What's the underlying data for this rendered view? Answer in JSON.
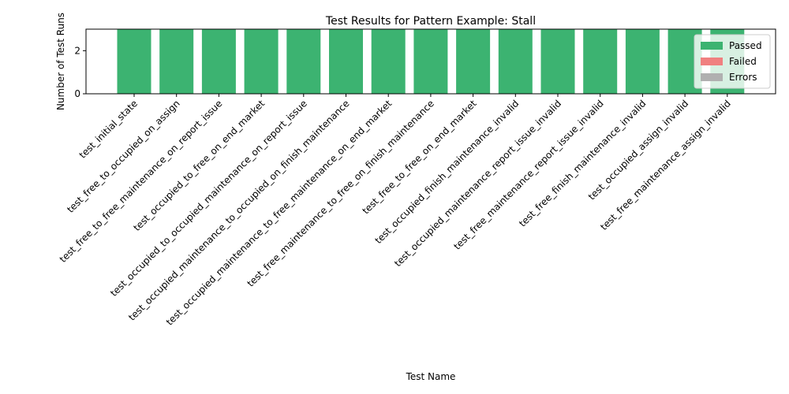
{
  "chart_data": {
    "type": "bar",
    "title": "Test Results for Pattern Example: Stall",
    "xlabel": "Test Name",
    "ylabel": "Number of Test Runs",
    "categories": [
      "test_initial_state",
      "test_free_to_occupied_on_assign",
      "test_free_to_free_maintenance_on_report_issue",
      "test_occupied_to_free_on_end_market",
      "test_occupied_to_occupied_maintenance_on_report_issue",
      "test_occupied_maintenance_to_occupied_on_finish_maintenance",
      "test_occupied_maintenance_to_free_maintenance_on_end_market",
      "test_free_maintenance_to_free_on_finish_maintenance",
      "test_free_to_free_on_end_market",
      "test_occupied_finish_maintenance_invalid",
      "test_occupied_maintenance_report_issue_invalid",
      "test_free_maintenance_report_issue_invalid",
      "test_free_finish_maintenance_invalid",
      "test_occupied_assign_invalid",
      "test_free_maintenance_assign_invalid"
    ],
    "series": [
      {
        "name": "Passed",
        "color": "#3cb371",
        "values": [
          3,
          3,
          3,
          3,
          3,
          3,
          3,
          3,
          3,
          3,
          3,
          3,
          3,
          3,
          3
        ]
      },
      {
        "name": "Failed",
        "color": "#f08080",
        "values": [
          0,
          0,
          0,
          0,
          0,
          0,
          0,
          0,
          0,
          0,
          0,
          0,
          0,
          0,
          0
        ]
      },
      {
        "name": "Errors",
        "color": "#b0b0b0",
        "values": [
          0,
          0,
          0,
          0,
          0,
          0,
          0,
          0,
          0,
          0,
          0,
          0,
          0,
          0,
          0
        ]
      }
    ],
    "stacked": true,
    "ylim": [
      0,
      3
    ],
    "yticks": [
      0,
      2
    ],
    "legend_position": "top-right",
    "grid": false
  }
}
